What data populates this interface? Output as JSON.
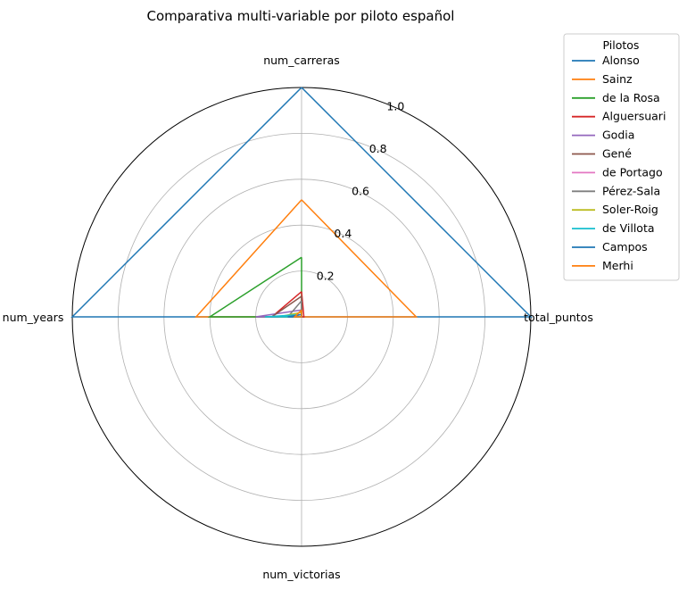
{
  "chart_data": {
    "type": "radar",
    "title": "Comparativa multi-variable por piloto español",
    "axes": [
      "num_carreras",
      "total_puntos",
      "num_victorias",
      "num_years"
    ],
    "rlim": [
      0,
      1.0
    ],
    "rticks": [
      "0.2",
      "0.4",
      "0.6",
      "0.8",
      "1.0"
    ],
    "rtick_values": [
      0.2,
      0.4,
      0.6,
      0.8,
      1.0
    ],
    "grid": true,
    "legend": {
      "title": "Pilotos",
      "placement": "outside top-right"
    },
    "series": [
      {
        "name": "Alonso",
        "color": "#1f77b4",
        "values": [
          1.0,
          1.0,
          0.0,
          1.0
        ]
      },
      {
        "name": "Sainz",
        "color": "#ff7f0e",
        "values": [
          0.51,
          0.5,
          0.0,
          0.46
        ]
      },
      {
        "name": "de la Rosa",
        "color": "#2ca02c",
        "values": [
          0.26,
          0.0,
          0.0,
          0.4
        ]
      },
      {
        "name": "Alguersuari",
        "color": "#d62728",
        "values": [
          0.11,
          0.01,
          0.0,
          0.13
        ]
      },
      {
        "name": "Godia",
        "color": "#9467bd",
        "values": [
          0.03,
          0.0,
          0.0,
          0.2
        ]
      },
      {
        "name": "Gené",
        "color": "#8c564b",
        "values": [
          0.09,
          0.0,
          0.0,
          0.13
        ]
      },
      {
        "name": "de Portago",
        "color": "#e377c2",
        "values": [
          0.01,
          0.0,
          0.0,
          0.06
        ]
      },
      {
        "name": "Pérez-Sala",
        "color": "#7f7f7f",
        "values": [
          0.07,
          0.0,
          0.0,
          0.06
        ]
      },
      {
        "name": "Soler-Roig",
        "color": "#bcbd22",
        "values": [
          0.02,
          0.0,
          0.0,
          0.1
        ]
      },
      {
        "name": "de Villota",
        "color": "#17becf",
        "values": [
          0.01,
          0.0,
          0.0,
          0.16
        ]
      },
      {
        "name": "Campos",
        "color": "#1f77b4",
        "values": [
          0.01,
          0.0,
          0.0,
          0.06
        ]
      },
      {
        "name": "Merhi",
        "color": "#ff7f0e",
        "values": [
          0.03,
          0.0,
          0.0,
          0.03
        ]
      }
    ]
  }
}
